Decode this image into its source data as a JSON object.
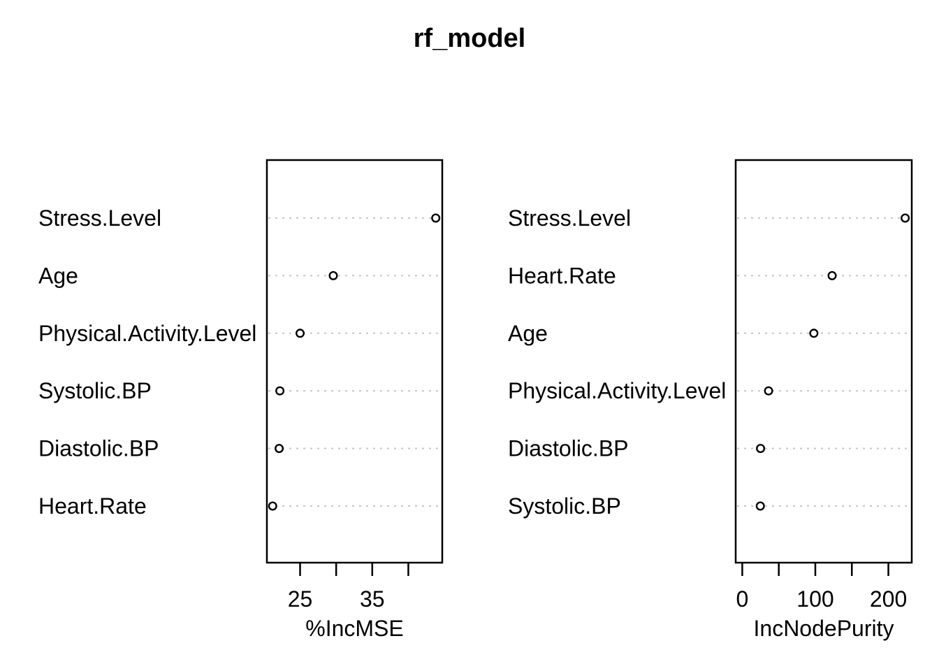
{
  "title": "rf_model",
  "colors": {
    "background": "#ffffff",
    "foreground": "#000000",
    "grid": "#c6c6c6"
  },
  "chart_data": [
    {
      "type": "scatter",
      "panel": "left",
      "xlabel": "%IncMSE",
      "categories": [
        "Stress.Level",
        "Age",
        "Physical.Activity.Level",
        "Systolic.BP",
        "Diastolic.BP",
        "Heart.Rate"
      ],
      "values": [
        43.8,
        29.6,
        25.0,
        22.2,
        22.1,
        21.2
      ],
      "xlim": [
        20.4,
        44.7
      ],
      "ticks": [
        25,
        30,
        35,
        40
      ],
      "tick_labels": [
        "25",
        "",
        "35",
        ""
      ],
      "grid": "dotted-horizontal",
      "marker": "open-circle",
      "legend": "none"
    },
    {
      "type": "scatter",
      "panel": "right",
      "xlabel": "IncNodePurity",
      "categories": [
        "Stress.Level",
        "Heart.Rate",
        "Age",
        "Physical.Activity.Level",
        "Diastolic.BP",
        "Systolic.BP"
      ],
      "values": [
        223,
        123,
        98,
        36,
        25,
        24.7
      ],
      "xlim": [
        -9,
        232
      ],
      "ticks": [
        0,
        50,
        100,
        150,
        200
      ],
      "tick_labels": [
        "0",
        "",
        "100",
        "",
        "200"
      ],
      "grid": "dotted-horizontal",
      "marker": "open-circle",
      "legend": "none"
    }
  ]
}
